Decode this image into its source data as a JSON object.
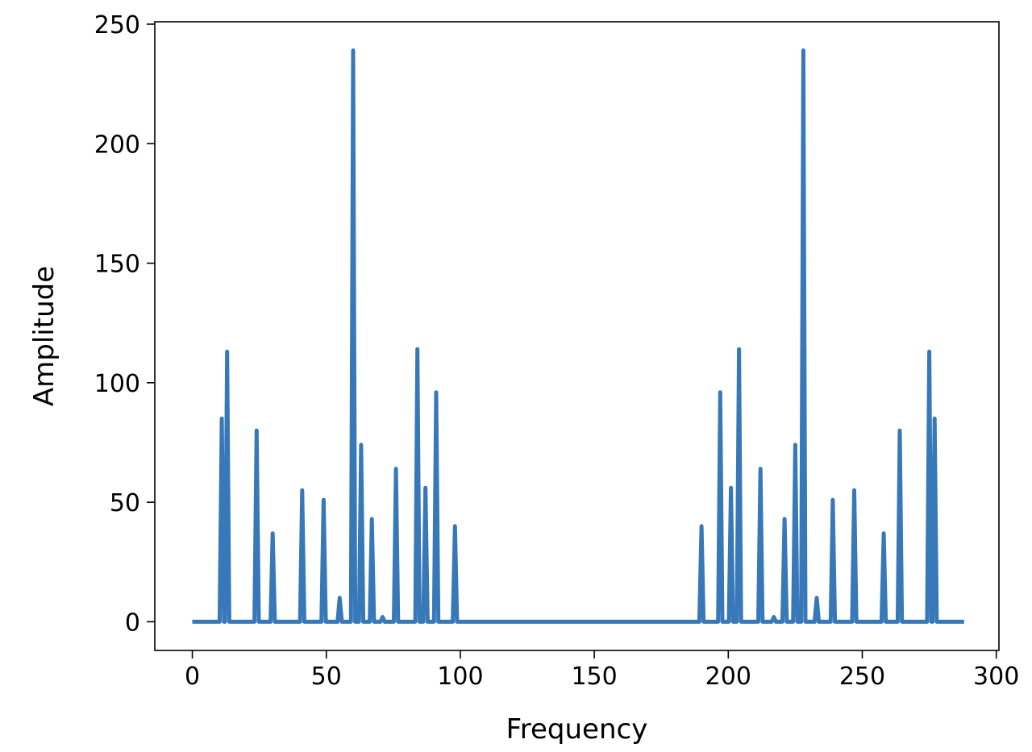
{
  "chart_data": {
    "type": "line",
    "title": "",
    "xlabel": "Frequency",
    "ylabel": "Amplitude",
    "xlim": [
      -14,
      301
    ],
    "ylim": [
      -12,
      251
    ],
    "xticks": [
      0,
      50,
      100,
      150,
      200,
      250,
      300
    ],
    "yticks": [
      0,
      50,
      100,
      150,
      200,
      250
    ],
    "xtick_labels": [
      "0",
      "50",
      "100",
      "150",
      "200",
      "250",
      "300"
    ],
    "ytick_labels": [
      "0",
      "50",
      "100",
      "150",
      "200",
      "250"
    ],
    "grid": false,
    "legend": "none",
    "line_color": "#3778b8",
    "series": [
      {
        "peaks": [
          {
            "x": 11,
            "y": 85
          },
          {
            "x": 13,
            "y": 113
          },
          {
            "x": 24,
            "y": 80
          },
          {
            "x": 30,
            "y": 37
          },
          {
            "x": 41,
            "y": 55
          },
          {
            "x": 49,
            "y": 51
          },
          {
            "x": 55,
            "y": 10
          },
          {
            "x": 60,
            "y": 239
          },
          {
            "x": 63,
            "y": 74
          },
          {
            "x": 67,
            "y": 43
          },
          {
            "x": 71,
            "y": 2
          },
          {
            "x": 76,
            "y": 64
          },
          {
            "x": 84,
            "y": 114
          },
          {
            "x": 87,
            "y": 56
          },
          {
            "x": 91,
            "y": 96
          },
          {
            "x": 98,
            "y": 40
          },
          {
            "x": 190,
            "y": 40
          },
          {
            "x": 197,
            "y": 96
          },
          {
            "x": 201,
            "y": 56
          },
          {
            "x": 204,
            "y": 114
          },
          {
            "x": 212,
            "y": 64
          },
          {
            "x": 217,
            "y": 2
          },
          {
            "x": 221,
            "y": 43
          },
          {
            "x": 225,
            "y": 74
          },
          {
            "x": 228,
            "y": 239
          },
          {
            "x": 233,
            "y": 10
          },
          {
            "x": 239,
            "y": 51
          },
          {
            "x": 247,
            "y": 55
          },
          {
            "x": 258,
            "y": 37
          },
          {
            "x": 264,
            "y": 80
          },
          {
            "x": 275,
            "y": 113
          },
          {
            "x": 277,
            "y": 85
          }
        ],
        "x_start": 0,
        "x_end": 288
      }
    ]
  }
}
